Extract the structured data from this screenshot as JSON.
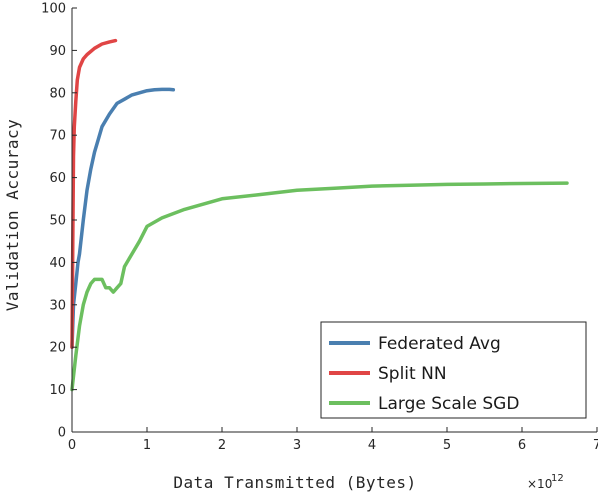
{
  "chart_data": {
    "type": "line",
    "xlabel": "Data Transmitted (Bytes)",
    "ylabel": "Validation Accuracy",
    "x_exponent_label": "×10",
    "x_exponent_power": "12",
    "xlim": [
      0,
      7
    ],
    "ylim": [
      0,
      100
    ],
    "xticks": [
      "0",
      "1",
      "2",
      "3",
      "4",
      "5",
      "6",
      "7"
    ],
    "yticks": [
      "0",
      "10",
      "20",
      "30",
      "40",
      "50",
      "60",
      "70",
      "80",
      "90",
      "100"
    ],
    "grid": false,
    "legend_position": "bottom-right",
    "series": [
      {
        "name": "Federated Avg",
        "color": "#4a7fb0",
        "x": [
          0.0,
          0.02,
          0.05,
          0.08,
          0.1,
          0.15,
          0.2,
          0.25,
          0.3,
          0.35,
          0.4,
          0.5,
          0.6,
          0.7,
          0.8,
          0.9,
          1.0,
          1.1,
          1.2,
          1.3,
          1.35
        ],
        "y": [
          20,
          30,
          35,
          40,
          42,
          50,
          57,
          62,
          66,
          69,
          72,
          75,
          77.5,
          78.5,
          79.5,
          80,
          80.5,
          80.7,
          80.8,
          80.8,
          80.7
        ]
      },
      {
        "name": "Split NN",
        "color": "#e04545",
        "x": [
          0.0,
          0.01,
          0.02,
          0.03,
          0.05,
          0.07,
          0.1,
          0.15,
          0.2,
          0.3,
          0.4,
          0.5,
          0.58
        ],
        "y": [
          20,
          45,
          65,
          72,
          78,
          83,
          86,
          88,
          89,
          90.5,
          91.5,
          92,
          92.3
        ]
      },
      {
        "name": "Large Scale SGD",
        "color": "#6cbf5f",
        "x": [
          0.0,
          0.05,
          0.1,
          0.15,
          0.2,
          0.25,
          0.3,
          0.35,
          0.4,
          0.45,
          0.5,
          0.55,
          0.6,
          0.65,
          0.7,
          0.8,
          0.9,
          1.0,
          1.2,
          1.5,
          2.0,
          2.5,
          3.0,
          3.5,
          4.0,
          4.5,
          5.0,
          5.5,
          6.0,
          6.6
        ],
        "y": [
          10,
          18,
          25,
          30,
          33,
          35,
          36,
          36,
          36,
          34,
          34,
          33,
          34,
          35,
          39,
          42,
          45,
          48.5,
          50.5,
          52.5,
          55,
          56,
          57,
          57.5,
          58,
          58.2,
          58.4,
          58.5,
          58.6,
          58.7
        ]
      }
    ]
  }
}
